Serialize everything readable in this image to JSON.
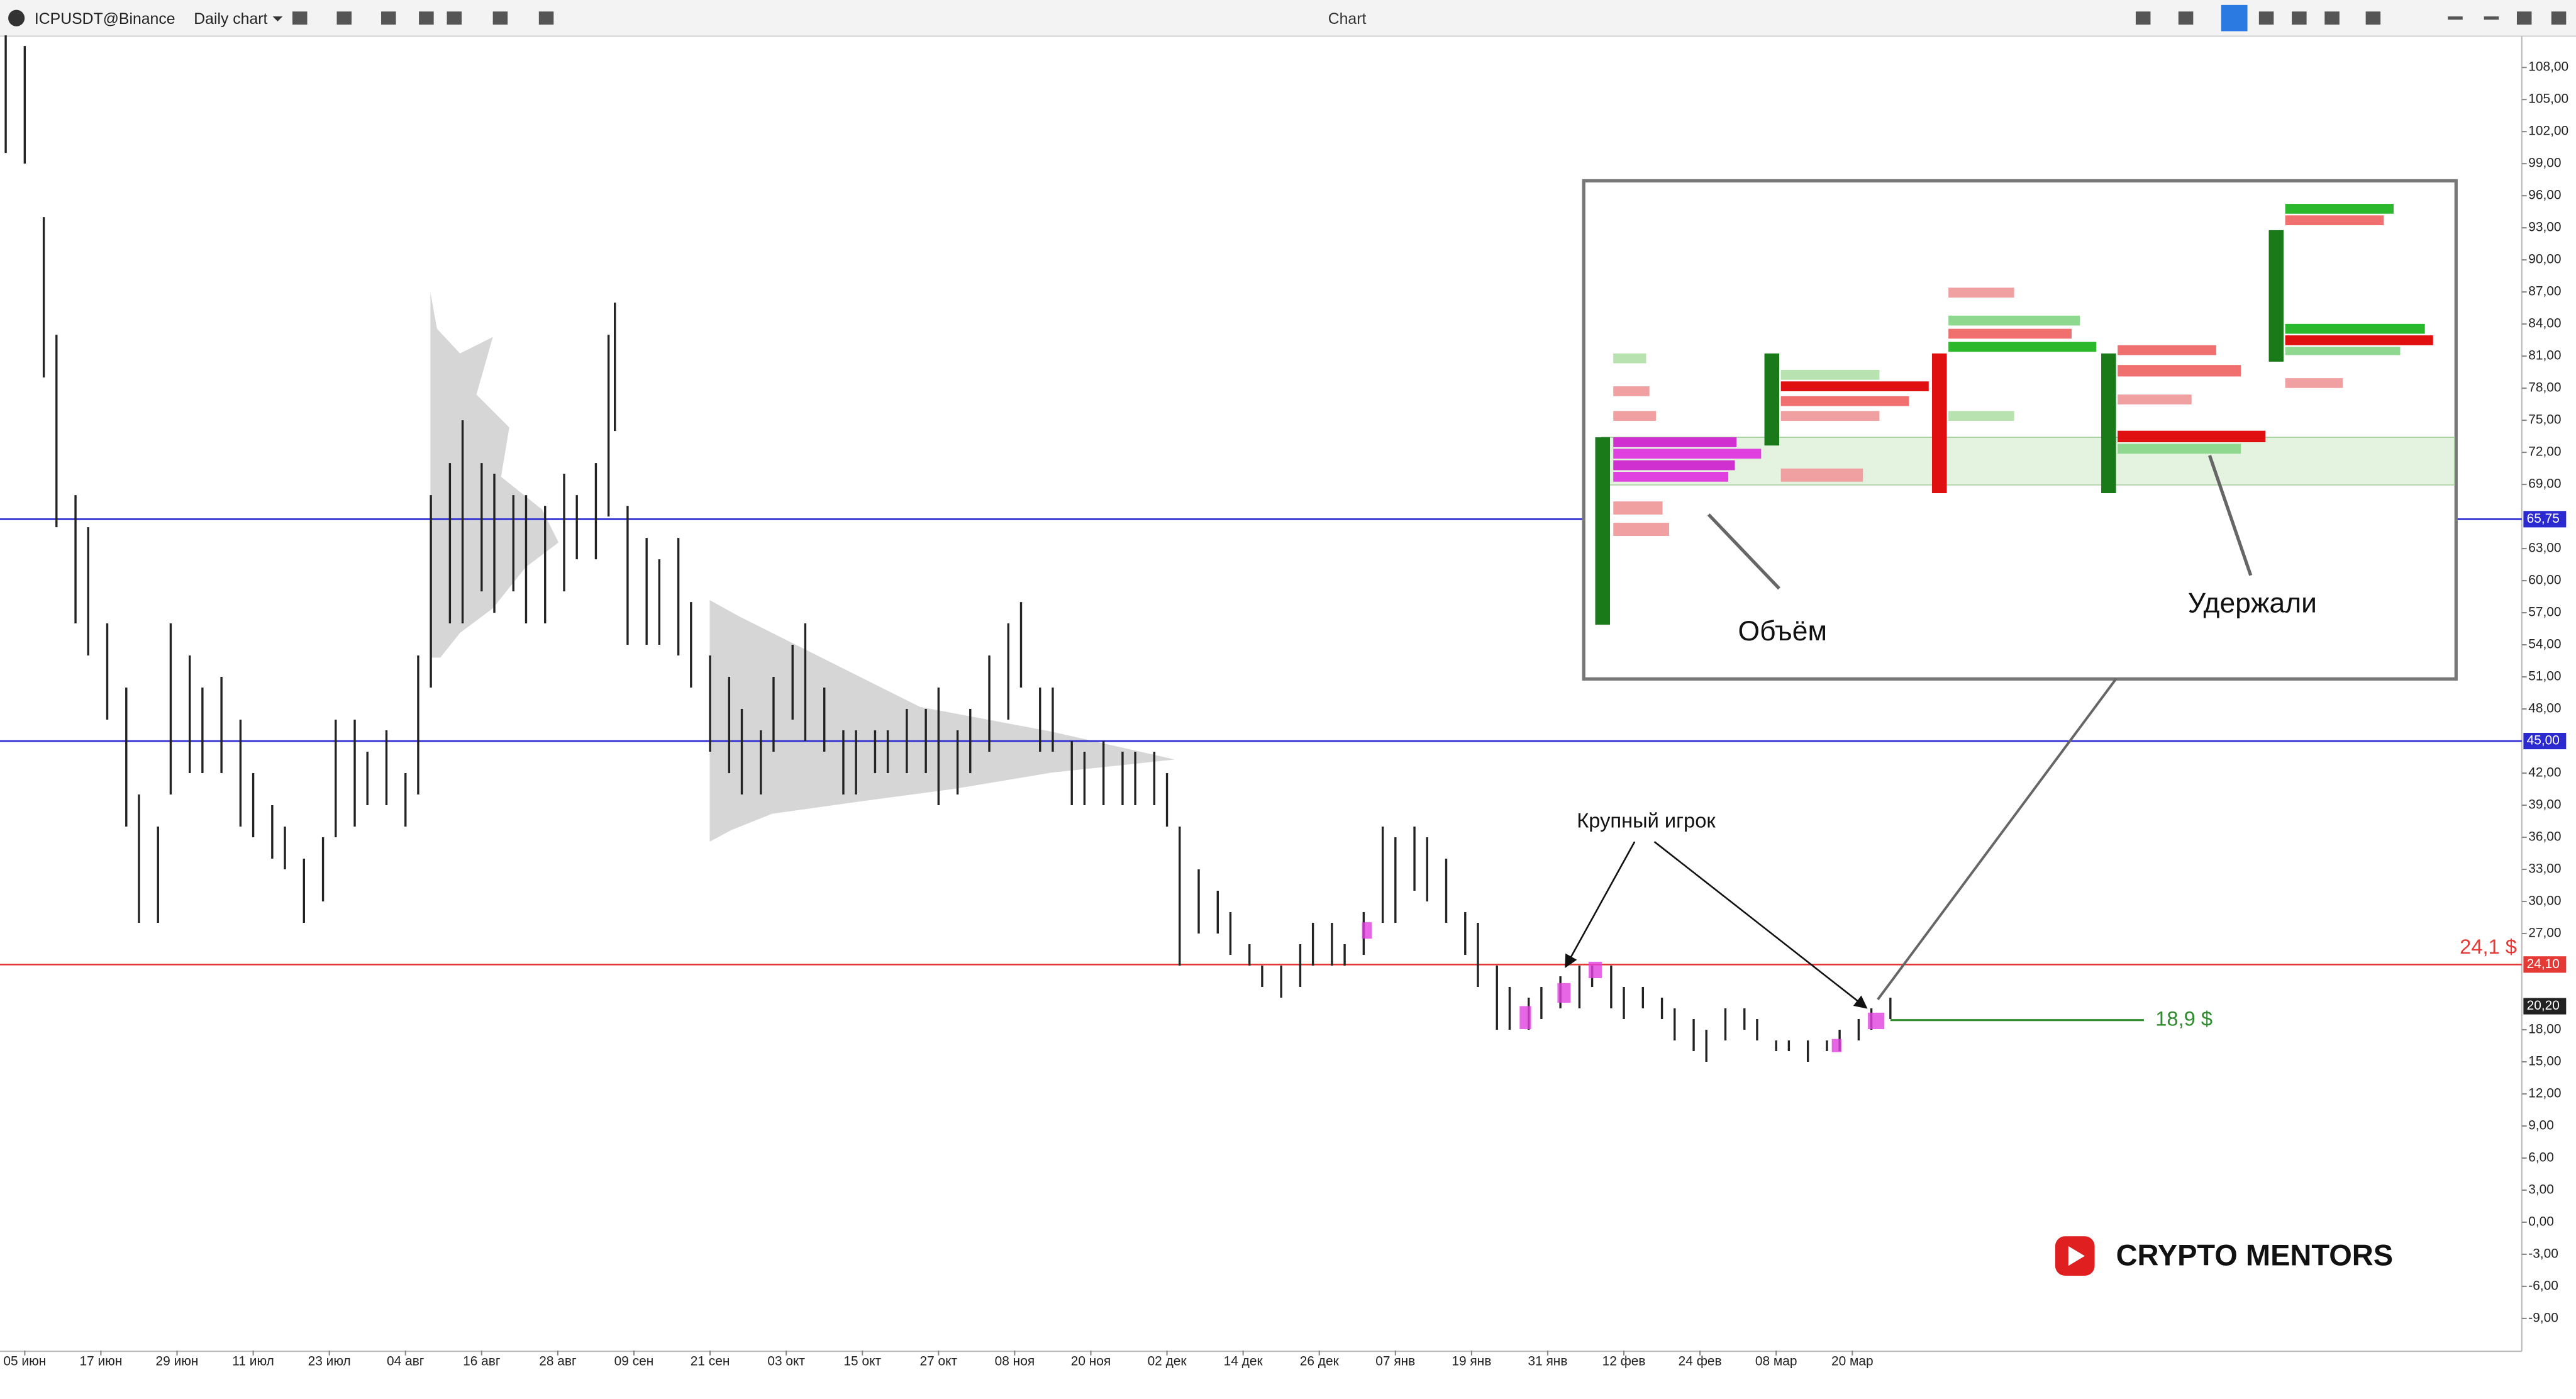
{
  "toolbar": {
    "symbol": "ICPUSDT@Binance",
    "interval": "Daily chart",
    "window_title": "Chart"
  },
  "chart_data": {
    "type": "hilo",
    "color": "#222222",
    "x": [
      -3,
      0,
      3,
      5,
      8,
      10,
      13,
      16,
      18,
      21,
      23,
      26,
      28,
      31,
      34,
      36,
      39,
      41,
      44,
      47,
      49,
      52,
      54,
      57,
      60,
      62,
      64,
      67,
      69,
      72,
      74,
      77,
      79,
      82,
      85,
      87,
      90,
      92,
      93,
      95,
      98,
      100,
      103,
      105,
      108,
      111,
      113,
      116,
      118,
      121,
      123,
      126,
      129,
      131,
      134,
      136,
      139,
      142,
      144,
      147,
      149,
      152,
      155,
      157,
      160,
      162,
      165,
      167,
      170,
      173,
      175,
      178,
      180,
      182,
      185,
      188,
      190,
      193,
      195,
      198,
      201,
      203,
      206,
      208,
      211,
      214,
      216,
      219,
      221,
      224,
      227,
      229,
      232,
      234,
      237,
      239,
      242,
      245,
      247,
      250,
      252,
      255,
      258,
      260,
      263,
      265,
      268,
      271,
      273,
      276,
      278,
      281,
      284,
      286,
      289,
      291,
      294
    ],
    "high": [
      111,
      110,
      94,
      83,
      68,
      65,
      56,
      50,
      40,
      37,
      56,
      53,
      50,
      51,
      47,
      42,
      39,
      37,
      34,
      36,
      47,
      47,
      44,
      46,
      42,
      53,
      68,
      71,
      75,
      71,
      70,
      68,
      68,
      67,
      70,
      68,
      71,
      83,
      86,
      67,
      64,
      62,
      64,
      58,
      53,
      51,
      48,
      46,
      51,
      54,
      56,
      50,
      46,
      46,
      46,
      46,
      48,
      48,
      50,
      46,
      48,
      53,
      56,
      58,
      50,
      50,
      45,
      44,
      45,
      44,
      44,
      44,
      42,
      37,
      33,
      31,
      29,
      26,
      24,
      24,
      26,
      28,
      28,
      26,
      29,
      37,
      36,
      37,
      36,
      34,
      29,
      28,
      24,
      22,
      21,
      22,
      23,
      24,
      24,
      24,
      22,
      22,
      21,
      20,
      19,
      18,
      20,
      20,
      19,
      17,
      17,
      17,
      17,
      18,
      19,
      20,
      21
    ],
    "low": [
      100,
      99,
      79,
      65,
      56,
      53,
      47,
      37,
      28,
      28,
      40,
      42,
      42,
      42,
      37,
      36,
      34,
      33,
      28,
      30,
      36,
      37,
      39,
      39,
      37,
      40,
      50,
      56,
      56,
      59,
      57,
      59,
      56,
      56,
      59,
      62,
      62,
      66,
      74,
      54,
      54,
      54,
      53,
      50,
      44,
      42,
      40,
      40,
      44,
      47,
      45,
      44,
      40,
      40,
      42,
      42,
      42,
      42,
      39,
      40,
      42,
      44,
      47,
      50,
      44,
      44,
      39,
      39,
      39,
      39,
      39,
      39,
      37,
      24,
      27,
      27,
      25,
      24,
      22,
      21,
      22,
      24,
      24,
      24,
      25,
      28,
      28,
      31,
      30,
      28,
      25,
      22,
      18,
      18,
      18,
      19,
      20,
      20,
      22,
      20,
      19,
      20,
      19,
      17,
      16,
      15,
      17,
      18,
      17,
      16,
      16,
      15,
      16,
      16,
      17,
      18,
      19
    ],
    "xlim": [
      -3.9,
      393.5
    ],
    "ylim": [
      -12,
      111
    ],
    "xticks": [
      {
        "value": 0,
        "label": "05 июн"
      },
      {
        "value": 12,
        "label": "17 июн"
      },
      {
        "value": 24,
        "label": "29 июн"
      },
      {
        "value": 36,
        "label": "11 июл"
      },
      {
        "value": 48,
        "label": "23 июл"
      },
      {
        "value": 60,
        "label": "04 авг"
      },
      {
        "value": 72,
        "label": "16 авг"
      },
      {
        "value": 84,
        "label": "28 авг"
      },
      {
        "value": 96,
        "label": "09 сен"
      },
      {
        "value": 108,
        "label": "21 сен"
      },
      {
        "value": 120,
        "label": "03 окт"
      },
      {
        "value": 132,
        "label": "15 окт"
      },
      {
        "value": 144,
        "label": "27 окт"
      },
      {
        "value": 156,
        "label": "08 ноя"
      },
      {
        "value": 168,
        "label": "20 ноя"
      },
      {
        "value": 180,
        "label": "02 дек"
      },
      {
        "value": 192,
        "label": "14 дек"
      },
      {
        "value": 204,
        "label": "26 дек"
      },
      {
        "value": 216,
        "label": "07 янв"
      },
      {
        "value": 228,
        "label": "19 янв"
      },
      {
        "value": 240,
        "label": "31 янв"
      },
      {
        "value": 252,
        "label": "12 фев"
      },
      {
        "value": 264,
        "label": "24 фев"
      },
      {
        "value": 276,
        "label": "08 мар"
      },
      {
        "value": 288,
        "label": "20 мар"
      }
    ],
    "yticks": [
      {
        "value": 108,
        "label": "108,00"
      },
      {
        "value": 105,
        "label": "105,00"
      },
      {
        "value": 102,
        "label": "102,00"
      },
      {
        "value": 99,
        "label": "99,00"
      },
      {
        "value": 96,
        "label": "96,00"
      },
      {
        "value": 93,
        "label": "93,00"
      },
      {
        "value": 90,
        "label": "90,00"
      },
      {
        "value": 87,
        "label": "87,00"
      },
      {
        "value": 84,
        "label": "84,00"
      },
      {
        "value": 81,
        "label": "81,00"
      },
      {
        "value": 78,
        "label": "78,00"
      },
      {
        "value": 75,
        "label": "75,00"
      },
      {
        "value": 72,
        "label": "72,00"
      },
      {
        "value": 69,
        "label": "69,00"
      },
      {
        "value": 63,
        "label": "63,00"
      },
      {
        "value": 60,
        "label": "60,00"
      },
      {
        "value": 57,
        "label": "57,00"
      },
      {
        "value": 54,
        "label": "54,00"
      },
      {
        "value": 51,
        "label": "51,00"
      },
      {
        "value": 48,
        "label": "48,00"
      },
      {
        "value": 42,
        "label": "42,00"
      },
      {
        "value": 39,
        "label": "39,00"
      },
      {
        "value": 36,
        "label": "36,00"
      },
      {
        "value": 33,
        "label": "33,00"
      },
      {
        "value": 30,
        "label": "30,00"
      },
      {
        "value": 27,
        "label": "27,00"
      },
      {
        "value": 18,
        "label": "18,00"
      },
      {
        "value": 15,
        "label": "15,00"
      },
      {
        "value": 12,
        "label": "12,00"
      },
      {
        "value": 9,
        "label": "9,00"
      },
      {
        "value": 6,
        "label": "6,00"
      },
      {
        "value": 3,
        "label": "3,00"
      },
      {
        "value": 0,
        "label": "0,00"
      },
      {
        "value": -3,
        "label": "-3,00"
      },
      {
        "value": -6,
        "label": "-6,00"
      },
      {
        "value": -9,
        "label": "-9,00"
      }
    ],
    "levels": [
      {
        "value": 65.75,
        "label": "65,75",
        "color": "#2a2ad0",
        "line": "full"
      },
      {
        "value": 45,
        "label": "45,00",
        "color": "#2a2ad0",
        "line": "full"
      },
      {
        "value": 24.1,
        "label": "24,10",
        "note": "24,1 $",
        "color": "#e53935",
        "line": "full"
      },
      {
        "value": 20.2,
        "label": "20,20",
        "color": "#222222",
        "line": "none"
      },
      {
        "value": 18.9,
        "note": "18,9 $",
        "color": "#2e8b2e",
        "line": "short"
      }
    ]
  },
  "annotations": {
    "big_player": "Крупный игрок",
    "volume": "Объём",
    "held": "Удержали"
  },
  "watermark": "CRYPTO MENTORS"
}
